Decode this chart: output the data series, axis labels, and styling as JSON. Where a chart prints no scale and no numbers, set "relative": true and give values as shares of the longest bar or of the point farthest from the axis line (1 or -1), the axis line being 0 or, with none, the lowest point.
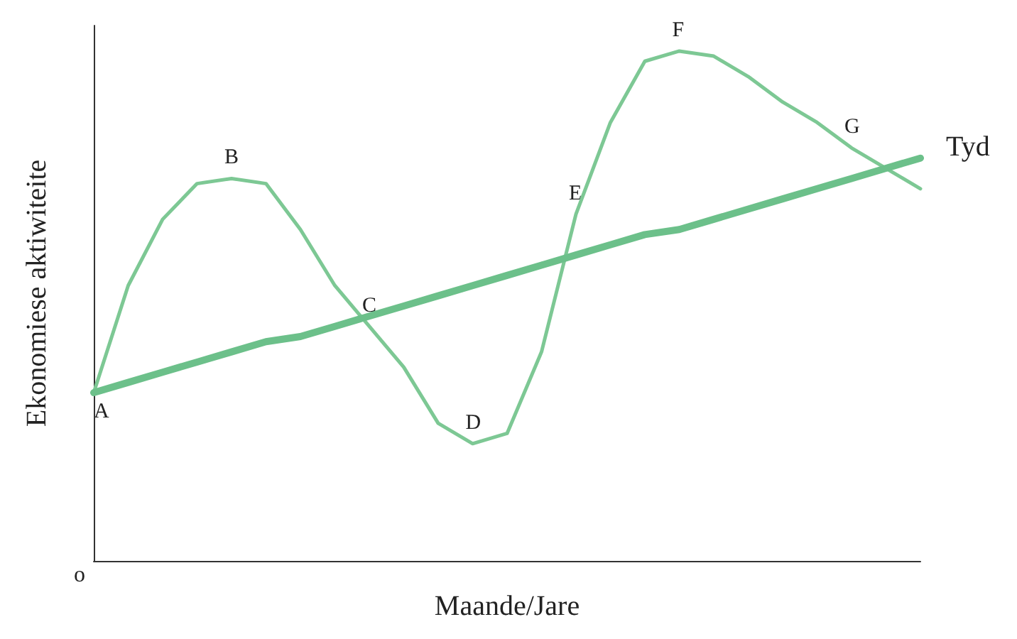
{
  "chart_data": {
    "type": "line",
    "relative": true,
    "xlabel": "Maande/Jare",
    "ylabel": "Ekonomiese aktiwiteite",
    "legend": false,
    "grid": false,
    "marker": "none",
    "categories": [
      null,
      null,
      null,
      null,
      null,
      null,
      null,
      null,
      null,
      null,
      null,
      null,
      null,
      null,
      null,
      null,
      null,
      null,
      null,
      null,
      null,
      null,
      null,
      null,
      null
    ],
    "series": [
      {
        "color": "#7dc894",
        "values": [
          0.33,
          0.54,
          0.67,
          0.74,
          0.75,
          0.74,
          0.65,
          0.54,
          0.46,
          0.38,
          0.27,
          0.23,
          0.25,
          0.41,
          0.68,
          0.86,
          0.98,
          1,
          0.99,
          0.95,
          0.9,
          0.86,
          0.81,
          0.77,
          0.73
        ]
      },
      {
        "name": "Tyd",
        "color": "#6cc08a",
        "values": [
          0.33,
          0.35,
          0.37,
          0.39,
          0.41,
          0.43,
          0.44,
          0.46,
          0.48,
          0.5,
          0.52,
          0.54,
          0.56,
          0.58,
          0.6,
          0.62,
          0.64,
          0.65,
          0.67,
          0.69,
          0.71,
          0.73,
          0.75,
          0.77,
          0.79
        ]
      }
    ],
    "annotations": [
      "o",
      {
        "text": "A",
        "y": 0.33
      },
      {
        "text": "B",
        "y": 0.75
      },
      {
        "text": "C",
        "y": 0.46
      },
      {
        "text": "D",
        "y": 0.23
      },
      {
        "text": "E",
        "y": 0.68
      },
      {
        "text": "F",
        "y": 1
      },
      {
        "text": "G",
        "y": 0.81
      }
    ]
  }
}
